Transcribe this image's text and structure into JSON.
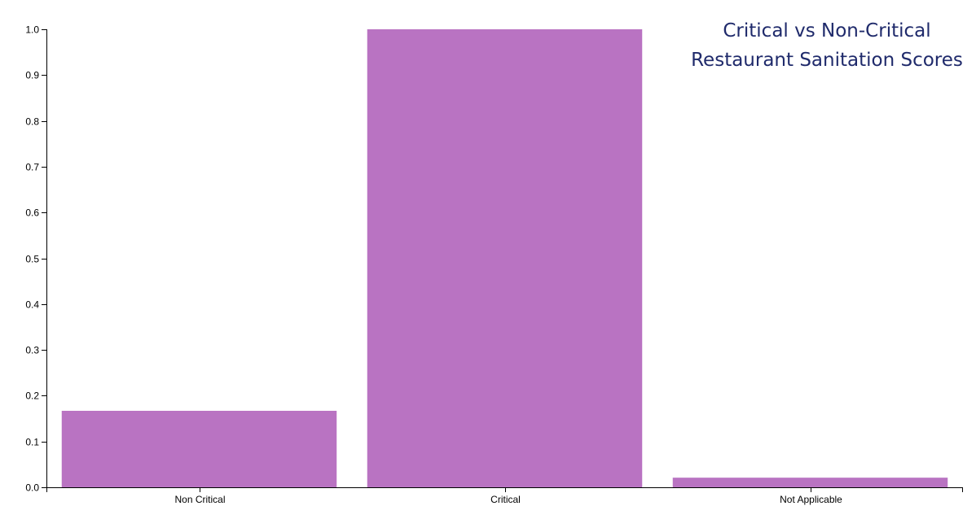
{
  "chart_data": {
    "type": "bar",
    "title_lines": [
      "Critical vs Non-Critical",
      "Restaurant Sanitation Scores"
    ],
    "categories": [
      "Non Critical",
      "Critical",
      "Not Applicable"
    ],
    "values": [
      0.167,
      1.0,
      0.021
    ],
    "ylim": [
      0,
      1.0
    ],
    "yticks": [
      "0.0",
      "0.1",
      "0.2",
      "0.3",
      "0.4",
      "0.5",
      "0.6",
      "0.7",
      "0.8",
      "0.9",
      "1.0"
    ],
    "xlabel": "",
    "ylabel": "",
    "grid": false,
    "legend": "none",
    "bar_color": "#b973c2",
    "title_color": "#1f2a6b"
  }
}
